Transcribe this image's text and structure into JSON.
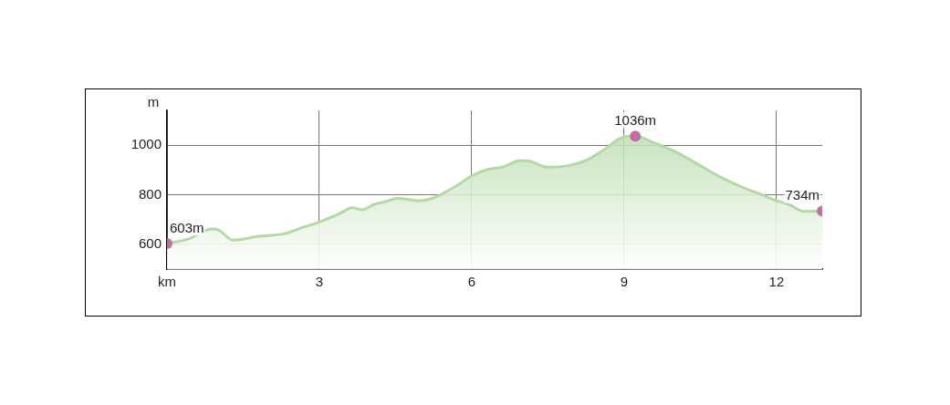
{
  "chart_data": {
    "type": "area",
    "ylabel": "m",
    "xlim": [
      0,
      12.9
    ],
    "xticks": [
      {
        "value": 0,
        "label": "km"
      },
      3,
      6,
      9,
      12
    ],
    "ylim": [
      500,
      1140
    ],
    "yticks": [
      600,
      800,
      1000
    ],
    "grid": true,
    "legend": false,
    "series": [
      {
        "type": "area",
        "color": "#b3d9a5",
        "marker": "none",
        "x": [
          0,
          0.43,
          0.88,
          0.99,
          1.3,
          1.8,
          2.34,
          2.64,
          3.0,
          3.36,
          3.66,
          3.84,
          4.08,
          4.32,
          4.53,
          4.98,
          5.22,
          5.7,
          6.0,
          6.3,
          6.6,
          6.96,
          7.14,
          7.5,
          7.92,
          8.28,
          8.58,
          9.0,
          9.22,
          9.6,
          10.02,
          10.5,
          10.92,
          11.46,
          11.64,
          12.0,
          12.24,
          12.54,
          12.9
        ],
        "values": [
          603,
          622,
          662,
          660,
          617,
          632,
          644,
          666,
          690,
          720,
          747,
          739,
          761,
          773,
          785,
          776,
          785,
          836,
          876,
          901,
          911,
          938,
          935,
          911,
          918,
          941,
          978,
          1033,
          1036,
          1008,
          972,
          917,
          868,
          819,
          806,
          776,
          761,
          733,
          734
        ]
      },
      {
        "type": "scatter",
        "color": "#c0709a",
        "marker": "circle",
        "x": [
          0,
          9.22,
          12.9
        ],
        "values": [
          603,
          1036,
          734
        ],
        "value_labels": [
          "603m",
          "1036m",
          "734m"
        ]
      }
    ]
  }
}
